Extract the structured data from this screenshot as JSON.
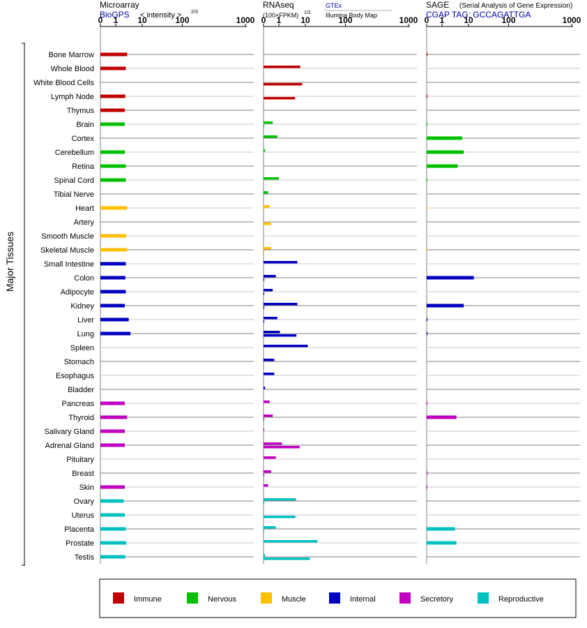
{
  "side_label": "Major Tissues",
  "panels": [
    {
      "id": "microarray",
      "title": "Microarray",
      "subtitle": "BioGPS",
      "unit_text": "< intensity >",
      "unit_power": "2/3",
      "ticks": [
        "0",
        "1",
        "10",
        "100",
        "1000"
      ]
    },
    {
      "id": "rnaseq",
      "title": "RNAseq",
      "unit_text": "(100×FPKM)",
      "unit_power": "1/2",
      "sources": [
        "GTEx",
        "Illumina Body Map"
      ],
      "ticks": [
        "0",
        "1",
        "10",
        "100",
        "1000"
      ]
    },
    {
      "id": "sage",
      "title": "SAGE",
      "title_note": "(Serial Analysis of Gene Expression)",
      "subtitle": "CGAP TAG: GCCAGATTGA",
      "ticks": [
        "0",
        "1",
        "10",
        "100",
        "1000"
      ]
    }
  ],
  "legend": [
    {
      "label": "Immune",
      "color": "#c00000"
    },
    {
      "label": "Nervous",
      "color": "#00c000"
    },
    {
      "label": "Muscle",
      "color": "#ffc000"
    },
    {
      "label": "Internal",
      "color": "#0000c0"
    },
    {
      "label": "Secretory",
      "color": "#c000c0"
    },
    {
      "label": "Reproductive",
      "color": "#00c0c0"
    }
  ],
  "chart_data": {
    "type": "bar",
    "orientation": "horizontal",
    "scale": "log-like (0, 1, 10, 100, 1000)",
    "xlim": [
      0,
      1000
    ],
    "categories": [
      "Bone Marrow",
      "Whole Blood",
      "White Blood Cells",
      "Lymph Node",
      "Thymus",
      "Brain",
      "Cortex",
      "Cerebellum",
      "Retina",
      "Spinal Cord",
      "Tibial Nerve",
      "Heart",
      "Artery",
      "Smooth Muscle",
      "Skeletal Muscle",
      "Small Intestine",
      "Colon",
      "Adipocyte",
      "Kidney",
      "Liver",
      "Lung",
      "Spleen",
      "Stomach",
      "Esophagus",
      "Bladder",
      "Pancreas",
      "Thyroid",
      "Salivary Gland",
      "Adrenal Gland",
      "Pituitary",
      "Breast",
      "Skin",
      "Ovary",
      "Uterus",
      "Placenta",
      "Prostate",
      "Testis"
    ],
    "groups": [
      "Immune",
      "Immune",
      "Immune",
      "Immune",
      "Immune",
      "Nervous",
      "Nervous",
      "Nervous",
      "Nervous",
      "Nervous",
      "Nervous",
      "Muscle",
      "Muscle",
      "Muscle",
      "Muscle",
      "Internal",
      "Internal",
      "Internal",
      "Internal",
      "Internal",
      "Internal",
      "Internal",
      "Internal",
      "Internal",
      "Internal",
      "Secretory",
      "Secretory",
      "Secretory",
      "Secretory",
      "Secretory",
      "Secretory",
      "Secretory",
      "Reproductive",
      "Reproductive",
      "Reproductive",
      "Reproductive",
      "Reproductive"
    ],
    "series": [
      {
        "name": "Microarray",
        "values": [
          2.7,
          2.4,
          null,
          2.3,
          2.2,
          2.2,
          null,
          2.2,
          2.4,
          2.4,
          null,
          2.7,
          null,
          2.5,
          2.7,
          2.4,
          2.3,
          2.4,
          2.2,
          3.1,
          3.6,
          null,
          null,
          null,
          null,
          2.2,
          2.7,
          2.2,
          2.2,
          null,
          null,
          2.2,
          2.0,
          2.2,
          2.4,
          2.5,
          2.3
        ]
      },
      {
        "name": "GTEx",
        "values": [
          null,
          6.4,
          null,
          null,
          null,
          0.6,
          0.9,
          0.1,
          null,
          1.0,
          0.3,
          0.4,
          null,
          null,
          0.5,
          5.0,
          0.8,
          0.6,
          5.0,
          0.9,
          1.1,
          11.5,
          0.7,
          0.7,
          0.1,
          0.4,
          0.6,
          0.05,
          1.3,
          0.8,
          0.5,
          0.3,
          4.4,
          null,
          0.8,
          20,
          0.1
        ]
      },
      {
        "name": "Illumina Body Map",
        "values": [
          null,
          null,
          7.6,
          4.1,
          null,
          0.05,
          null,
          null,
          null,
          null,
          null,
          0.05,
          0.5,
          null,
          0.05,
          null,
          0.05,
          0.05,
          0.05,
          0.05,
          4.6,
          null,
          null,
          null,
          null,
          null,
          0.05,
          null,
          6.1,
          null,
          0.05,
          null,
          0.05,
          4.2,
          0.05,
          null,
          13.0
        ]
      },
      {
        "name": "SAGE",
        "values": [
          0.05,
          null,
          null,
          0.05,
          null,
          0.05,
          5.8,
          6.6,
          3.9,
          0.05,
          null,
          0.02,
          null,
          null,
          0.02,
          null,
          13.6,
          null,
          6.6,
          0.05,
          0.05,
          null,
          null,
          null,
          null,
          0.05,
          3.5,
          null,
          null,
          null,
          0.05,
          0.05,
          null,
          null,
          3.1,
          3.5,
          null
        ]
      }
    ]
  }
}
